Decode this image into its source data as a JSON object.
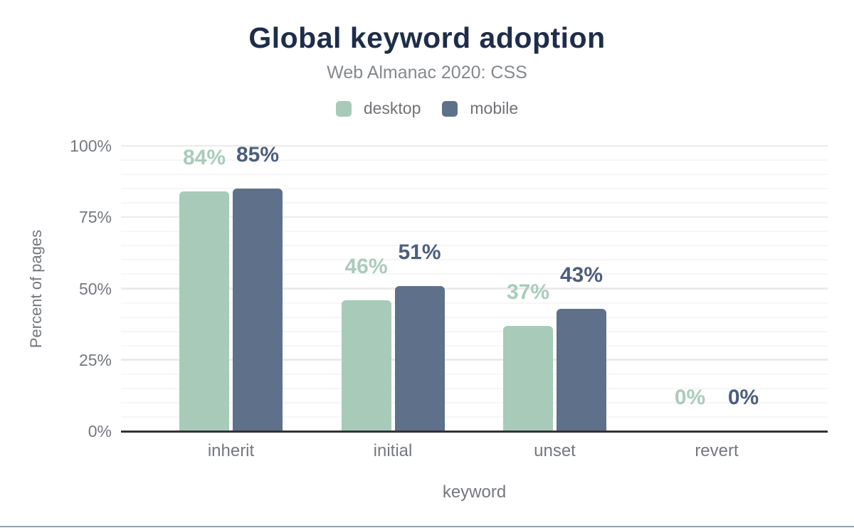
{
  "page": {
    "background": "#ffffff",
    "bottom_border_color": "#9aa0a6"
  },
  "chart_data": {
    "type": "bar",
    "title": "Global keyword adoption",
    "subtitle": "Web Almanac 2020: CSS",
    "xlabel": "keyword",
    "ylabel": "Percent of pages",
    "categories": [
      "inherit",
      "initial",
      "unset",
      "revert"
    ],
    "series": [
      {
        "name": "desktop",
        "color": "#a7cab9",
        "label_color": "#a9ccbb",
        "values": [
          84,
          46,
          37,
          0
        ],
        "labels": [
          "84%",
          "46%",
          "37%",
          "0%"
        ]
      },
      {
        "name": "mobile",
        "color": "#5f708b",
        "label_color": "#4c5e7e",
        "values": [
          85,
          51,
          43,
          0
        ],
        "labels": [
          "85%",
          "51%",
          "43%",
          "0%"
        ]
      }
    ],
    "ylim": [
      0,
      100
    ],
    "y_ticks": [
      {
        "value": 100,
        "label": "100%"
      },
      {
        "value": 75,
        "label": "75%"
      },
      {
        "value": 50,
        "label": "50%"
      },
      {
        "value": 25,
        "label": "25%"
      },
      {
        "value": 0,
        "label": "0%"
      }
    ],
    "grid": {
      "major_step": 25,
      "minor_step": 5,
      "major_color": "#ebebeb",
      "minor_color": "#f6f6f6"
    },
    "axis_text_color": "#74787e",
    "axis_line_color": "#2f3337",
    "title_color": "#1e2d49",
    "subtitle_color": "#85898e",
    "legend_position": "top"
  }
}
